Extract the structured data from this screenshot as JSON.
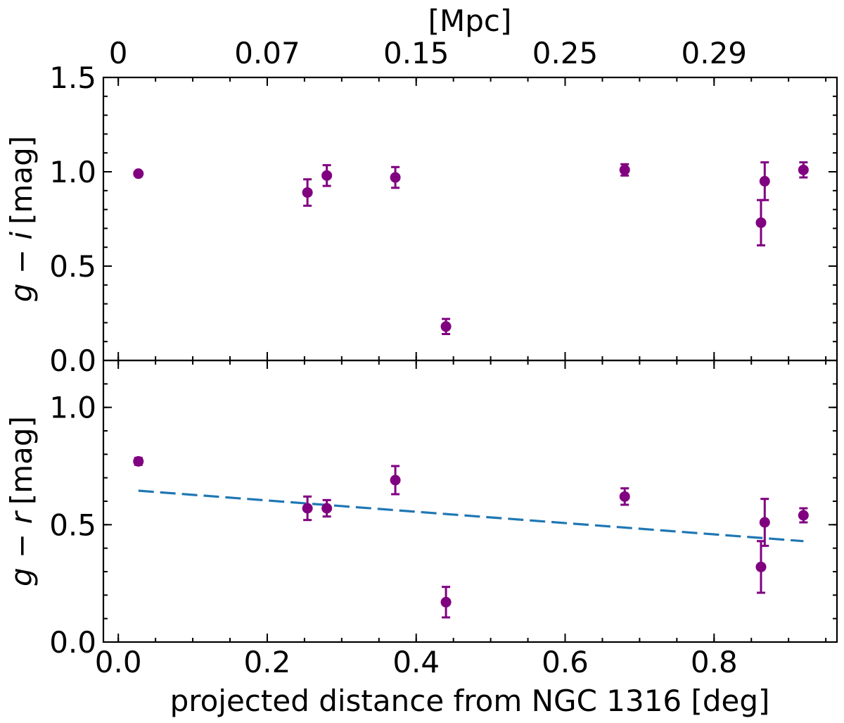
{
  "chart_data": {
    "type": "scatter",
    "shared_x": {
      "label": "projected distance from NGC 1316 [deg]",
      "lim": [
        -0.02,
        0.965
      ],
      "ticks": [
        0.0,
        0.2,
        0.4,
        0.6,
        0.8
      ],
      "tick_labels": [
        "0.0",
        "0.2",
        "0.4",
        "0.6",
        "0.8"
      ]
    },
    "top_axis": {
      "label": "[Mpc]",
      "tick_positions_deg": [
        0.0,
        0.2,
        0.4,
        0.6,
        0.8
      ],
      "tick_labels": [
        "0",
        "0.07",
        "0.15",
        "0.25",
        "0.29"
      ]
    },
    "panels": [
      {
        "name": "g-i",
        "ylabel_var": "g − i",
        "ylabel_unit": "[mag]",
        "ylim": [
          0.0,
          1.5
        ],
        "yticks": [
          0.0,
          0.5,
          1.0,
          1.5
        ],
        "ytick_labels": [
          "0.0",
          "0.5",
          "1.0",
          "1.5"
        ],
        "points": [
          {
            "x": 0.027,
            "y": 0.99,
            "err": 0.0
          },
          {
            "x": 0.254,
            "y": 0.89,
            "err": 0.07
          },
          {
            "x": 0.28,
            "y": 0.98,
            "err": 0.055
          },
          {
            "x": 0.372,
            "y": 0.97,
            "err": 0.055
          },
          {
            "x": 0.44,
            "y": 0.18,
            "err": 0.04
          },
          {
            "x": 0.68,
            "y": 1.01,
            "err": 0.03
          },
          {
            "x": 0.863,
            "y": 0.73,
            "err": 0.12
          },
          {
            "x": 0.868,
            "y": 0.95,
            "err": 0.1
          },
          {
            "x": 0.92,
            "y": 1.01,
            "err": 0.04
          }
        ]
      },
      {
        "name": "g-r",
        "ylabel_var": "g − r",
        "ylabel_unit": "[mag]",
        "ylim": [
          0.0,
          1.2
        ],
        "yticks": [
          0.0,
          0.5,
          1.0
        ],
        "ytick_labels": [
          "0.0",
          "0.5",
          "1.0"
        ],
        "points": [
          {
            "x": 0.027,
            "y": 0.77,
            "err": 0.015
          },
          {
            "x": 0.254,
            "y": 0.57,
            "err": 0.05
          },
          {
            "x": 0.28,
            "y": 0.57,
            "err": 0.035
          },
          {
            "x": 0.372,
            "y": 0.69,
            "err": 0.06
          },
          {
            "x": 0.44,
            "y": 0.17,
            "err": 0.065
          },
          {
            "x": 0.68,
            "y": 0.62,
            "err": 0.035
          },
          {
            "x": 0.863,
            "y": 0.32,
            "err": 0.11
          },
          {
            "x": 0.868,
            "y": 0.51,
            "err": 0.1
          },
          {
            "x": 0.92,
            "y": 0.54,
            "err": 0.03
          }
        ],
        "fit_line": {
          "style": "dashed",
          "color": "#1f77b4",
          "x": [
            0.027,
            0.92
          ],
          "y": [
            0.645,
            0.43
          ]
        }
      }
    ],
    "colors": {
      "points": "#800080",
      "fit": "#1f77b4"
    }
  }
}
